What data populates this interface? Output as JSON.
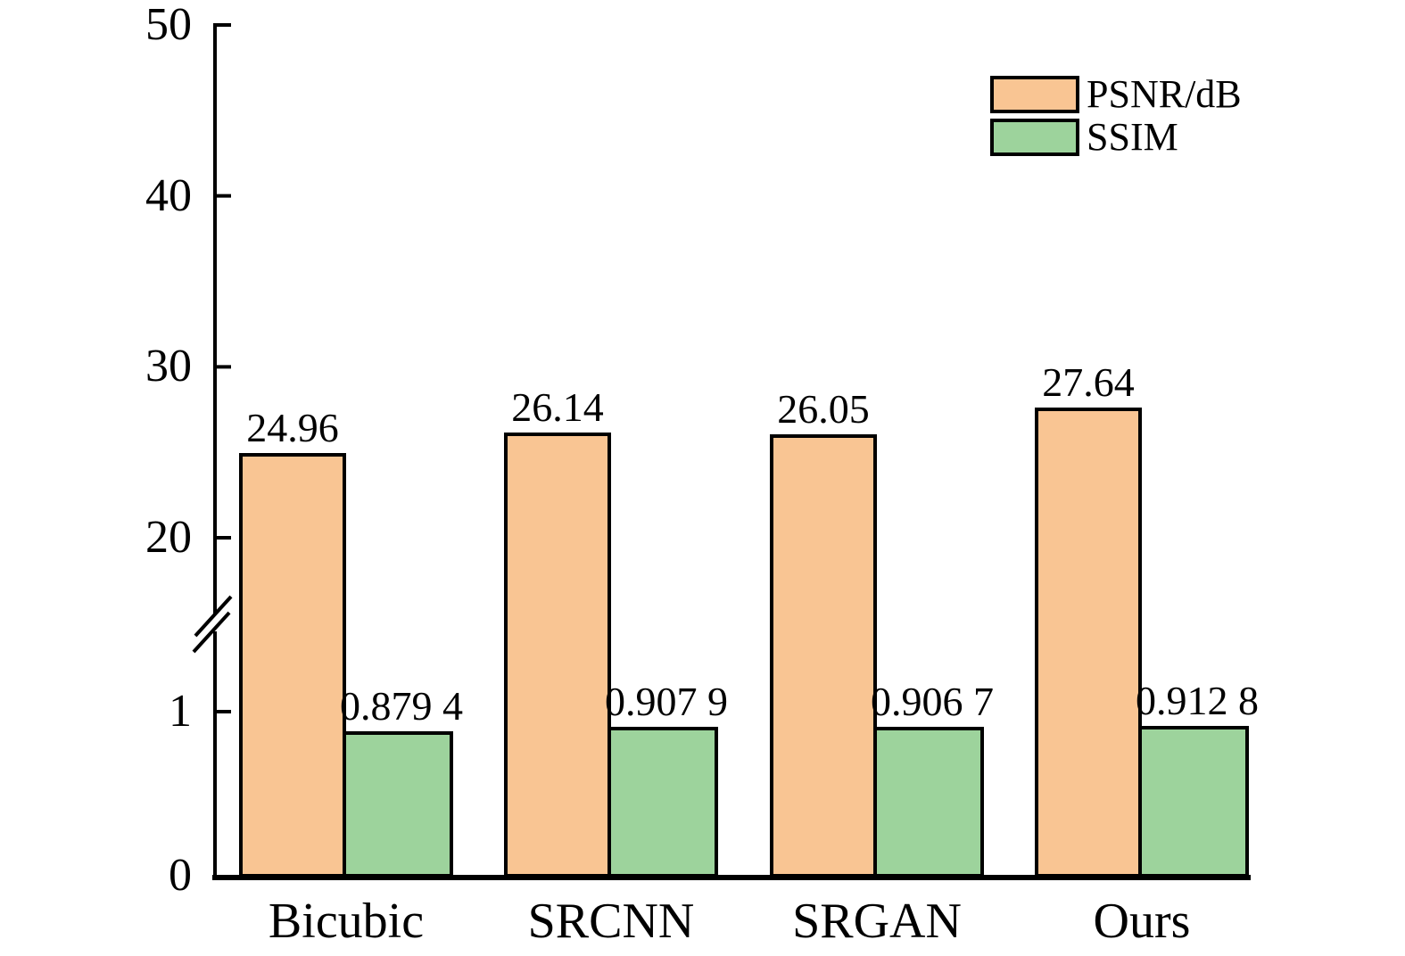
{
  "chart_data": {
    "type": "bar",
    "title": "",
    "categories": [
      "Bicubic",
      "SRCNN",
      "SRGAN",
      "Ours"
    ],
    "series": [
      {
        "name": "PSNR/dB",
        "color": "#F9C593",
        "values": [
          24.96,
          26.14,
          26.05,
          27.64
        ],
        "value_labels": [
          "24.96",
          "26.14",
          "26.05",
          "27.64"
        ]
      },
      {
        "name": "SSIM",
        "color": "#9DD39C",
        "values": [
          0.8794,
          0.9079,
          0.9067,
          0.9128
        ],
        "value_labels": [
          "0.879 4",
          "0.907 9",
          "0.906 7",
          "0.912 8"
        ]
      }
    ],
    "yaxis": {
      "broken_axis": true,
      "ticks": [
        {
          "value": 0,
          "label": "0"
        },
        {
          "value": 1,
          "label": "1"
        },
        {
          "value": 20,
          "label": "20"
        },
        {
          "value": 30,
          "label": "30"
        },
        {
          "value": 40,
          "label": "40"
        },
        {
          "value": 50,
          "label": "50"
        }
      ],
      "lower_segment_value_range": [
        0,
        1
      ],
      "upper_segment_value_range": [
        20,
        50
      ]
    },
    "legend": {
      "position": "top-right"
    },
    "grid": false,
    "bar_outline_color": "#000000",
    "axis_color": "#000000",
    "background_color": "#FFFFFF"
  }
}
